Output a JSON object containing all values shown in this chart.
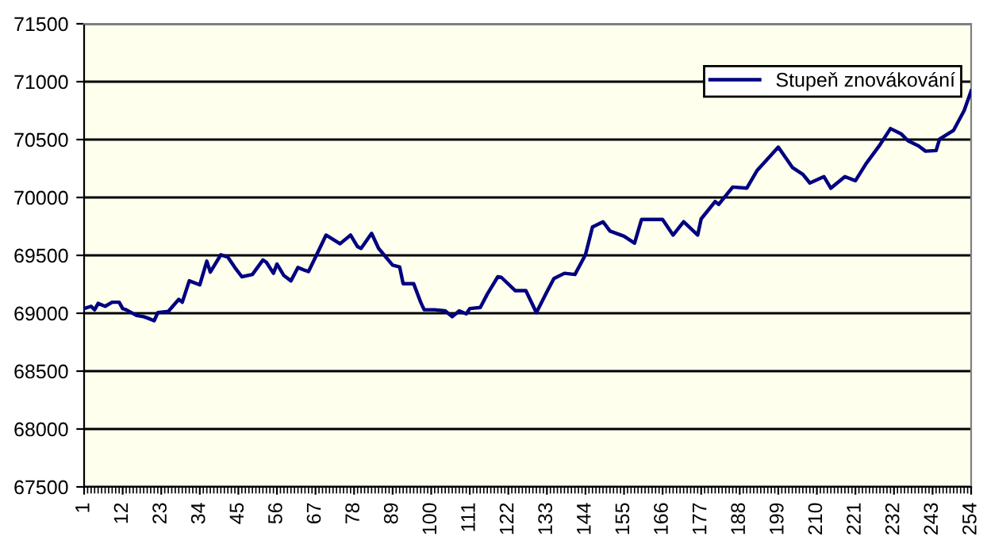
{
  "chart_data": {
    "type": "line",
    "legend": "top right",
    "grid": "y",
    "line_style": "solid",
    "marker": "none",
    "xlim": [
      1,
      254
    ],
    "xticks": [
      1,
      12,
      23,
      34,
      45,
      56,
      67,
      78,
      89,
      100,
      111,
      122,
      133,
      144,
      155,
      166,
      177,
      188,
      199,
      210,
      221,
      232,
      243,
      254
    ],
    "ylim": [
      67500,
      71500
    ],
    "yticks": [
      67500,
      68000,
      68500,
      69000,
      69500,
      70000,
      70500,
      71000,
      71500
    ],
    "series": [
      {
        "name": "Stupeň znovákování",
        "color": "#000080",
        "x": [
          1,
          3,
          4,
          5,
          7,
          9,
          11,
          12,
          13,
          16,
          18,
          19,
          21,
          22,
          25,
          28,
          29,
          31,
          34,
          36,
          37,
          40,
          42,
          44,
          46,
          49,
          52,
          53,
          55,
          56,
          58,
          60,
          62,
          64,
          65,
          67,
          70,
          74,
          77,
          79,
          80,
          83,
          85,
          89,
          91,
          92,
          95,
          97,
          98,
          101,
          104,
          106,
          108,
          110,
          111,
          114,
          116,
          119,
          120,
          124,
          127,
          130,
          133,
          135,
          138,
          141,
          144,
          146,
          149,
          151,
          155,
          158,
          160,
          166,
          169,
          172,
          176,
          177,
          181,
          182,
          186,
          190,
          193,
          199,
          203,
          206,
          208,
          212,
          214,
          218,
          221,
          224,
          228,
          231,
          234,
          236,
          239,
          241,
          244,
          245,
          249,
          252,
          254
        ],
        "values": [
          69040,
          69060,
          69030,
          69085,
          69060,
          69095,
          69095,
          69040,
          69030,
          68980,
          68970,
          68960,
          68935,
          69005,
          69015,
          69120,
          69095,
          69280,
          69245,
          69450,
          69355,
          69505,
          69485,
          69395,
          69315,
          69335,
          69460,
          69440,
          69345,
          69425,
          69325,
          69280,
          69395,
          69370,
          69360,
          69485,
          69675,
          69600,
          69675,
          69575,
          69560,
          69690,
          69560,
          69415,
          69400,
          69255,
          69255,
          69095,
          69030,
          69030,
          69020,
          68970,
          69020,
          68995,
          69040,
          69050,
          69165,
          69315,
          69310,
          69195,
          69195,
          69005,
          69185,
          69300,
          69345,
          69335,
          69505,
          69745,
          69790,
          69710,
          69665,
          69605,
          69810,
          69810,
          69675,
          69790,
          69675,
          69815,
          69965,
          69940,
          70090,
          70080,
          70235,
          70435,
          70260,
          70200,
          70125,
          70180,
          70080,
          70180,
          70145,
          70290,
          70455,
          70595,
          70550,
          70490,
          70445,
          70400,
          70405,
          70505,
          70580,
          70750,
          70920
        ]
      }
    ]
  }
}
